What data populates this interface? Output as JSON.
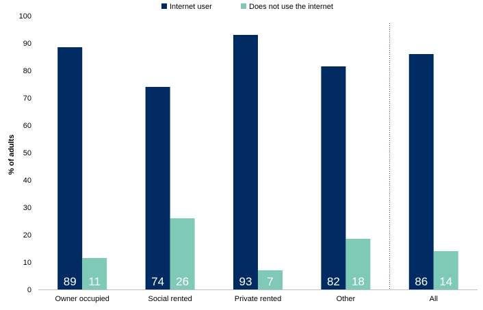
{
  "chart_data": {
    "type": "bar",
    "title": "",
    "xlabel": "",
    "ylabel": "% of adults",
    "ylim": [
      0,
      100
    ],
    "yticks": [
      0,
      10,
      20,
      30,
      40,
      50,
      60,
      70,
      80,
      90,
      100
    ],
    "categories": [
      "Owner occupied",
      "Social rented",
      "Private rented",
      "Other",
      "All"
    ],
    "series": [
      {
        "name": "Internet user",
        "color": "#002b62",
        "values": [
          88.5,
          74,
          93,
          81.5,
          86
        ],
        "labels": [
          "89",
          "74",
          "93",
          "82",
          "86"
        ]
      },
      {
        "name": "Does not use the internet",
        "color": "#7ecab6",
        "values": [
          11.5,
          26,
          7,
          18.5,
          14
        ],
        "labels": [
          "11",
          "26",
          "7",
          "18",
          "14"
        ]
      }
    ],
    "grid": false,
    "legend_position": "top",
    "separator_before_category": "All"
  }
}
